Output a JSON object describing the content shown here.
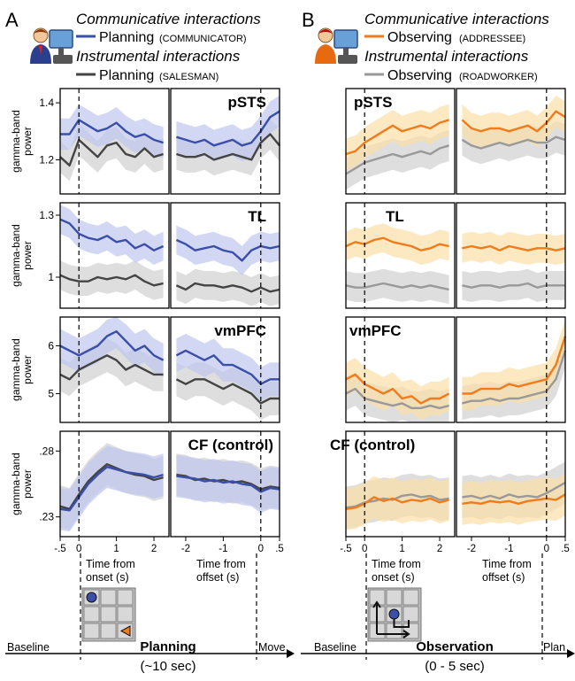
{
  "colors": {
    "comm_planning": "#3a4fa8",
    "comm_observing": "#f07b1c",
    "instr_planning": "#444444",
    "instr_observing": "#999999",
    "band_blue": "#bfc6ef",
    "band_orange": "#fbdfa7",
    "band_gray": "#d0d0d0"
  },
  "panels": [
    {
      "letter": "A",
      "legend": {
        "comm_title": "Communicative interactions",
        "comm_name": "Planning",
        "comm_role": "(COMMUNICATOR)",
        "instr_title": "Instrumental interactions",
        "instr_name": "Planning",
        "instr_role": "(SALESMAN)"
      },
      "xlabel_left": "Time from onset (s)",
      "xlabel_right": "Time from offset (s)",
      "timeline": {
        "start": "Baseline",
        "title": "Planning",
        "subtitle": "(~10 sec)",
        "end": "Move"
      }
    },
    {
      "letter": "B",
      "legend": {
        "comm_title": "Communicative interactions",
        "comm_name": "Observing",
        "comm_role": "(ADDRESSEE)",
        "instr_title": "Instrumental interactions",
        "instr_name": "Observing",
        "instr_role": "(ROADWORKER)"
      },
      "xlabel_left": "Time from onset (s)",
      "xlabel_right": "Time from offset (s)",
      "timeline": {
        "start": "Baseline",
        "title": "Observation",
        "subtitle": "(0 - 5 sec)",
        "end": "Plan"
      }
    }
  ],
  "ylabel": "gamma-band power",
  "chart_data": [
    {
      "type": "line",
      "panel": "A",
      "region": "pSTS",
      "ylim": [
        1.08,
        1.45
      ],
      "yticks": [
        1.2,
        1.4
      ],
      "onset": {
        "x": [
          -0.5,
          -0.25,
          0,
          0.25,
          0.5,
          0.75,
          1.0,
          1.25,
          1.5,
          1.75,
          2.0,
          2.25
        ],
        "communicative": [
          1.29,
          1.29,
          1.34,
          1.32,
          1.3,
          1.31,
          1.33,
          1.3,
          1.28,
          1.29,
          1.27,
          1.26
        ],
        "instrumental": [
          1.21,
          1.18,
          1.27,
          1.24,
          1.21,
          1.25,
          1.26,
          1.22,
          1.21,
          1.24,
          1.21,
          1.22
        ]
      },
      "offset": {
        "x": [
          -2.25,
          -2.0,
          -1.75,
          -1.5,
          -1.25,
          -1.0,
          -0.75,
          -0.5,
          -0.25,
          0,
          0.25,
          0.5
        ],
        "communicative": [
          1.28,
          1.27,
          1.26,
          1.27,
          1.25,
          1.26,
          1.27,
          1.25,
          1.26,
          1.3,
          1.35,
          1.37
        ],
        "instrumental": [
          1.22,
          1.21,
          1.21,
          1.22,
          1.2,
          1.21,
          1.22,
          1.21,
          1.2,
          1.26,
          1.29,
          1.25
        ]
      }
    },
    {
      "type": "line",
      "panel": "A",
      "region": "TL",
      "ylim": [
        0.85,
        1.36
      ],
      "yticks": [
        1,
        1.3
      ],
      "onset": {
        "x": [
          -0.5,
          -0.25,
          0,
          0.25,
          0.5,
          0.75,
          1.0,
          1.25,
          1.5,
          1.75,
          2.0,
          2.25
        ],
        "communicative": [
          1.28,
          1.26,
          1.21,
          1.19,
          1.18,
          1.2,
          1.17,
          1.18,
          1.14,
          1.16,
          1.13,
          1.15
        ],
        "instrumental": [
          1.01,
          0.99,
          0.98,
          0.98,
          1.0,
          0.99,
          1.0,
          0.99,
          1.01,
          0.98,
          0.96,
          0.97
        ]
      },
      "offset": {
        "x": [
          -2.25,
          -2.0,
          -1.75,
          -1.5,
          -1.25,
          -1.0,
          -0.75,
          -0.5,
          -0.25,
          0,
          0.25,
          0.5
        ],
        "communicative": [
          1.18,
          1.16,
          1.13,
          1.14,
          1.15,
          1.13,
          1.12,
          1.08,
          1.13,
          1.15,
          1.14,
          1.15
        ],
        "instrumental": [
          0.96,
          0.94,
          0.97,
          0.96,
          0.96,
          0.95,
          0.96,
          0.95,
          0.93,
          0.95,
          0.93,
          0.94
        ]
      }
    },
    {
      "type": "line",
      "panel": "A",
      "region": "vmPFC",
      "ylim": [
        4.4,
        6.6
      ],
      "yticks": [
        5,
        6
      ],
      "onset": {
        "x": [
          -0.5,
          -0.25,
          0,
          0.25,
          0.5,
          0.75,
          1.0,
          1.25,
          1.5,
          1.75,
          2.0,
          2.25
        ],
        "communicative": [
          6.0,
          5.9,
          5.8,
          5.9,
          6.0,
          6.2,
          6.3,
          6.1,
          5.9,
          6.0,
          5.8,
          5.7
        ],
        "instrumental": [
          5.4,
          5.3,
          5.5,
          5.6,
          5.7,
          5.8,
          5.7,
          5.5,
          5.6,
          5.5,
          5.4,
          5.4
        ]
      },
      "offset": {
        "x": [
          -2.25,
          -2.0,
          -1.75,
          -1.5,
          -1.25,
          -1.0,
          -0.75,
          -0.5,
          -0.25,
          0,
          0.25,
          0.5
        ],
        "communicative": [
          5.8,
          5.9,
          5.8,
          5.7,
          5.8,
          5.6,
          5.6,
          5.5,
          5.4,
          5.2,
          5.3,
          5.3
        ],
        "instrumental": [
          5.3,
          5.2,
          5.3,
          5.3,
          5.2,
          5.1,
          5.2,
          5.1,
          5.0,
          4.8,
          4.9,
          4.9
        ]
      }
    },
    {
      "type": "line",
      "panel": "A",
      "region": "CF (control)",
      "ylim": [
        0.215,
        0.295
      ],
      "yticks": [
        0.23,
        0.28
      ],
      "onset": {
        "x": [
          -0.5,
          -0.25,
          0,
          0.25,
          0.5,
          0.75,
          1.0,
          1.25,
          1.5,
          1.75,
          2.0,
          2.25
        ],
        "communicative": [
          0.236,
          0.235,
          0.245,
          0.255,
          0.262,
          0.268,
          0.266,
          0.264,
          0.263,
          0.262,
          0.26,
          0.262
        ],
        "instrumental": [
          0.238,
          0.236,
          0.247,
          0.257,
          0.264,
          0.27,
          0.267,
          0.264,
          0.262,
          0.261,
          0.258,
          0.26
        ]
      },
      "offset": {
        "x": [
          -2.25,
          -2.0,
          -1.75,
          -1.5,
          -1.25,
          -1.0,
          -0.75,
          -0.5,
          -0.25,
          0,
          0.25,
          0.5
        ],
        "communicative": [
          0.261,
          0.26,
          0.259,
          0.257,
          0.258,
          0.256,
          0.257,
          0.255,
          0.254,
          0.249,
          0.252,
          0.251
        ],
        "instrumental": [
          0.262,
          0.261,
          0.258,
          0.259,
          0.257,
          0.258,
          0.256,
          0.257,
          0.255,
          0.251,
          0.253,
          0.252
        ]
      }
    },
    {
      "type": "line",
      "panel": "B",
      "region": "pSTS",
      "ylim": [
        1.08,
        1.45
      ],
      "yticks": [],
      "onset": {
        "x": [
          -0.5,
          -0.25,
          0,
          0.25,
          0.5,
          0.75,
          1.0,
          1.25,
          1.5,
          1.75,
          2.0,
          2.25
        ],
        "communicative": [
          1.22,
          1.23,
          1.26,
          1.28,
          1.3,
          1.32,
          1.3,
          1.31,
          1.32,
          1.31,
          1.33,
          1.34
        ],
        "instrumental": [
          1.15,
          1.17,
          1.19,
          1.2,
          1.21,
          1.22,
          1.21,
          1.22,
          1.23,
          1.22,
          1.24,
          1.25
        ]
      },
      "offset": {
        "x": [
          -2.25,
          -2.0,
          -1.75,
          -1.5,
          -1.25,
          -1.0,
          -0.75,
          -0.5,
          -0.25,
          0,
          0.25,
          0.5
        ],
        "communicative": [
          1.34,
          1.31,
          1.3,
          1.31,
          1.31,
          1.3,
          1.31,
          1.32,
          1.3,
          1.33,
          1.37,
          1.35
        ],
        "instrumental": [
          1.27,
          1.25,
          1.24,
          1.25,
          1.26,
          1.25,
          1.26,
          1.27,
          1.26,
          1.26,
          1.28,
          1.27
        ]
      }
    },
    {
      "type": "line",
      "panel": "B",
      "region": "TL",
      "ylim": [
        0.85,
        1.36
      ],
      "yticks": [],
      "onset": {
        "x": [
          -0.5,
          -0.25,
          0,
          0.25,
          0.5,
          0.75,
          1.0,
          1.25,
          1.5,
          1.75,
          2.0,
          2.25
        ],
        "communicative": [
          1.15,
          1.17,
          1.16,
          1.18,
          1.19,
          1.17,
          1.16,
          1.15,
          1.13,
          1.14,
          1.16,
          1.15
        ],
        "instrumental": [
          0.96,
          0.95,
          0.95,
          0.96,
          0.97,
          0.96,
          0.95,
          0.96,
          0.95,
          0.96,
          0.95,
          0.94
        ]
      },
      "offset": {
        "x": [
          -2.25,
          -2.0,
          -1.75,
          -1.5,
          -1.25,
          -1.0,
          -0.75,
          -0.5,
          -0.25,
          0,
          0.25,
          0.5
        ],
        "communicative": [
          1.14,
          1.15,
          1.14,
          1.15,
          1.13,
          1.15,
          1.14,
          1.13,
          1.14,
          1.14,
          1.13,
          1.14
        ],
        "instrumental": [
          0.96,
          0.95,
          0.96,
          0.96,
          0.95,
          0.96,
          0.96,
          0.97,
          0.95,
          0.96,
          0.96,
          0.96
        ]
      }
    },
    {
      "type": "line",
      "panel": "B",
      "region": "vmPFC",
      "ylim": [
        4.4,
        6.6
      ],
      "yticks": [],
      "onset": {
        "x": [
          -0.5,
          -0.25,
          0,
          0.25,
          0.5,
          0.75,
          1.0,
          1.25,
          1.5,
          1.75,
          2.0,
          2.25
        ],
        "communicative": [
          5.3,
          5.4,
          5.2,
          5.1,
          5.0,
          5.1,
          4.9,
          4.95,
          4.8,
          4.9,
          4.9,
          5.0
        ],
        "instrumental": [
          5.0,
          5.1,
          4.9,
          4.85,
          4.8,
          4.75,
          4.8,
          4.7,
          4.7,
          4.75,
          4.7,
          4.75
        ]
      },
      "offset": {
        "x": [
          -2.25,
          -2.0,
          -1.75,
          -1.5,
          -1.25,
          -1.0,
          -0.75,
          -0.5,
          -0.25,
          0,
          0.25,
          0.5
        ],
        "communicative": [
          5.0,
          5.0,
          5.1,
          5.1,
          5.1,
          5.2,
          5.15,
          5.2,
          5.25,
          5.3,
          5.6,
          6.2
        ],
        "instrumental": [
          4.8,
          4.85,
          4.85,
          4.9,
          4.85,
          4.9,
          4.9,
          4.95,
          5.0,
          5.05,
          5.3,
          5.9
        ]
      }
    },
    {
      "type": "line",
      "panel": "B",
      "region": "CF (control)",
      "ylim": [
        0.215,
        0.295
      ],
      "yticks": [],
      "onset": {
        "x": [
          -0.5,
          -0.25,
          0,
          0.25,
          0.5,
          0.75,
          1.0,
          1.25,
          1.5,
          1.75,
          2.0,
          2.25
        ],
        "communicative": [
          0.236,
          0.237,
          0.24,
          0.245,
          0.242,
          0.244,
          0.241,
          0.243,
          0.242,
          0.244,
          0.241,
          0.243
        ],
        "instrumental": [
          0.237,
          0.238,
          0.241,
          0.242,
          0.244,
          0.243,
          0.246,
          0.247,
          0.245,
          0.246,
          0.243,
          0.244
        ]
      },
      "offset": {
        "x": [
          -2.25,
          -2.0,
          -1.75,
          -1.5,
          -1.25,
          -1.0,
          -0.75,
          -0.5,
          -0.25,
          0,
          0.25,
          0.5
        ],
        "communicative": [
          0.24,
          0.241,
          0.24,
          0.242,
          0.241,
          0.242,
          0.24,
          0.242,
          0.243,
          0.244,
          0.243,
          0.247
        ],
        "instrumental": [
          0.245,
          0.246,
          0.244,
          0.246,
          0.244,
          0.247,
          0.245,
          0.246,
          0.245,
          0.248,
          0.252,
          0.256
        ]
      }
    }
  ],
  "axis_ticks": {
    "onset": [
      "-.5",
      "0",
      "1",
      "2"
    ],
    "offset": [
      "-2",
      "-1",
      "0",
      ".5"
    ]
  },
  "icons": {
    "panelA": [
      "communicator-at-computer-icon",
      "game-board-icon"
    ],
    "panelB": [
      "addressee-at-computer-icon",
      "movement-path-board-icon"
    ]
  }
}
